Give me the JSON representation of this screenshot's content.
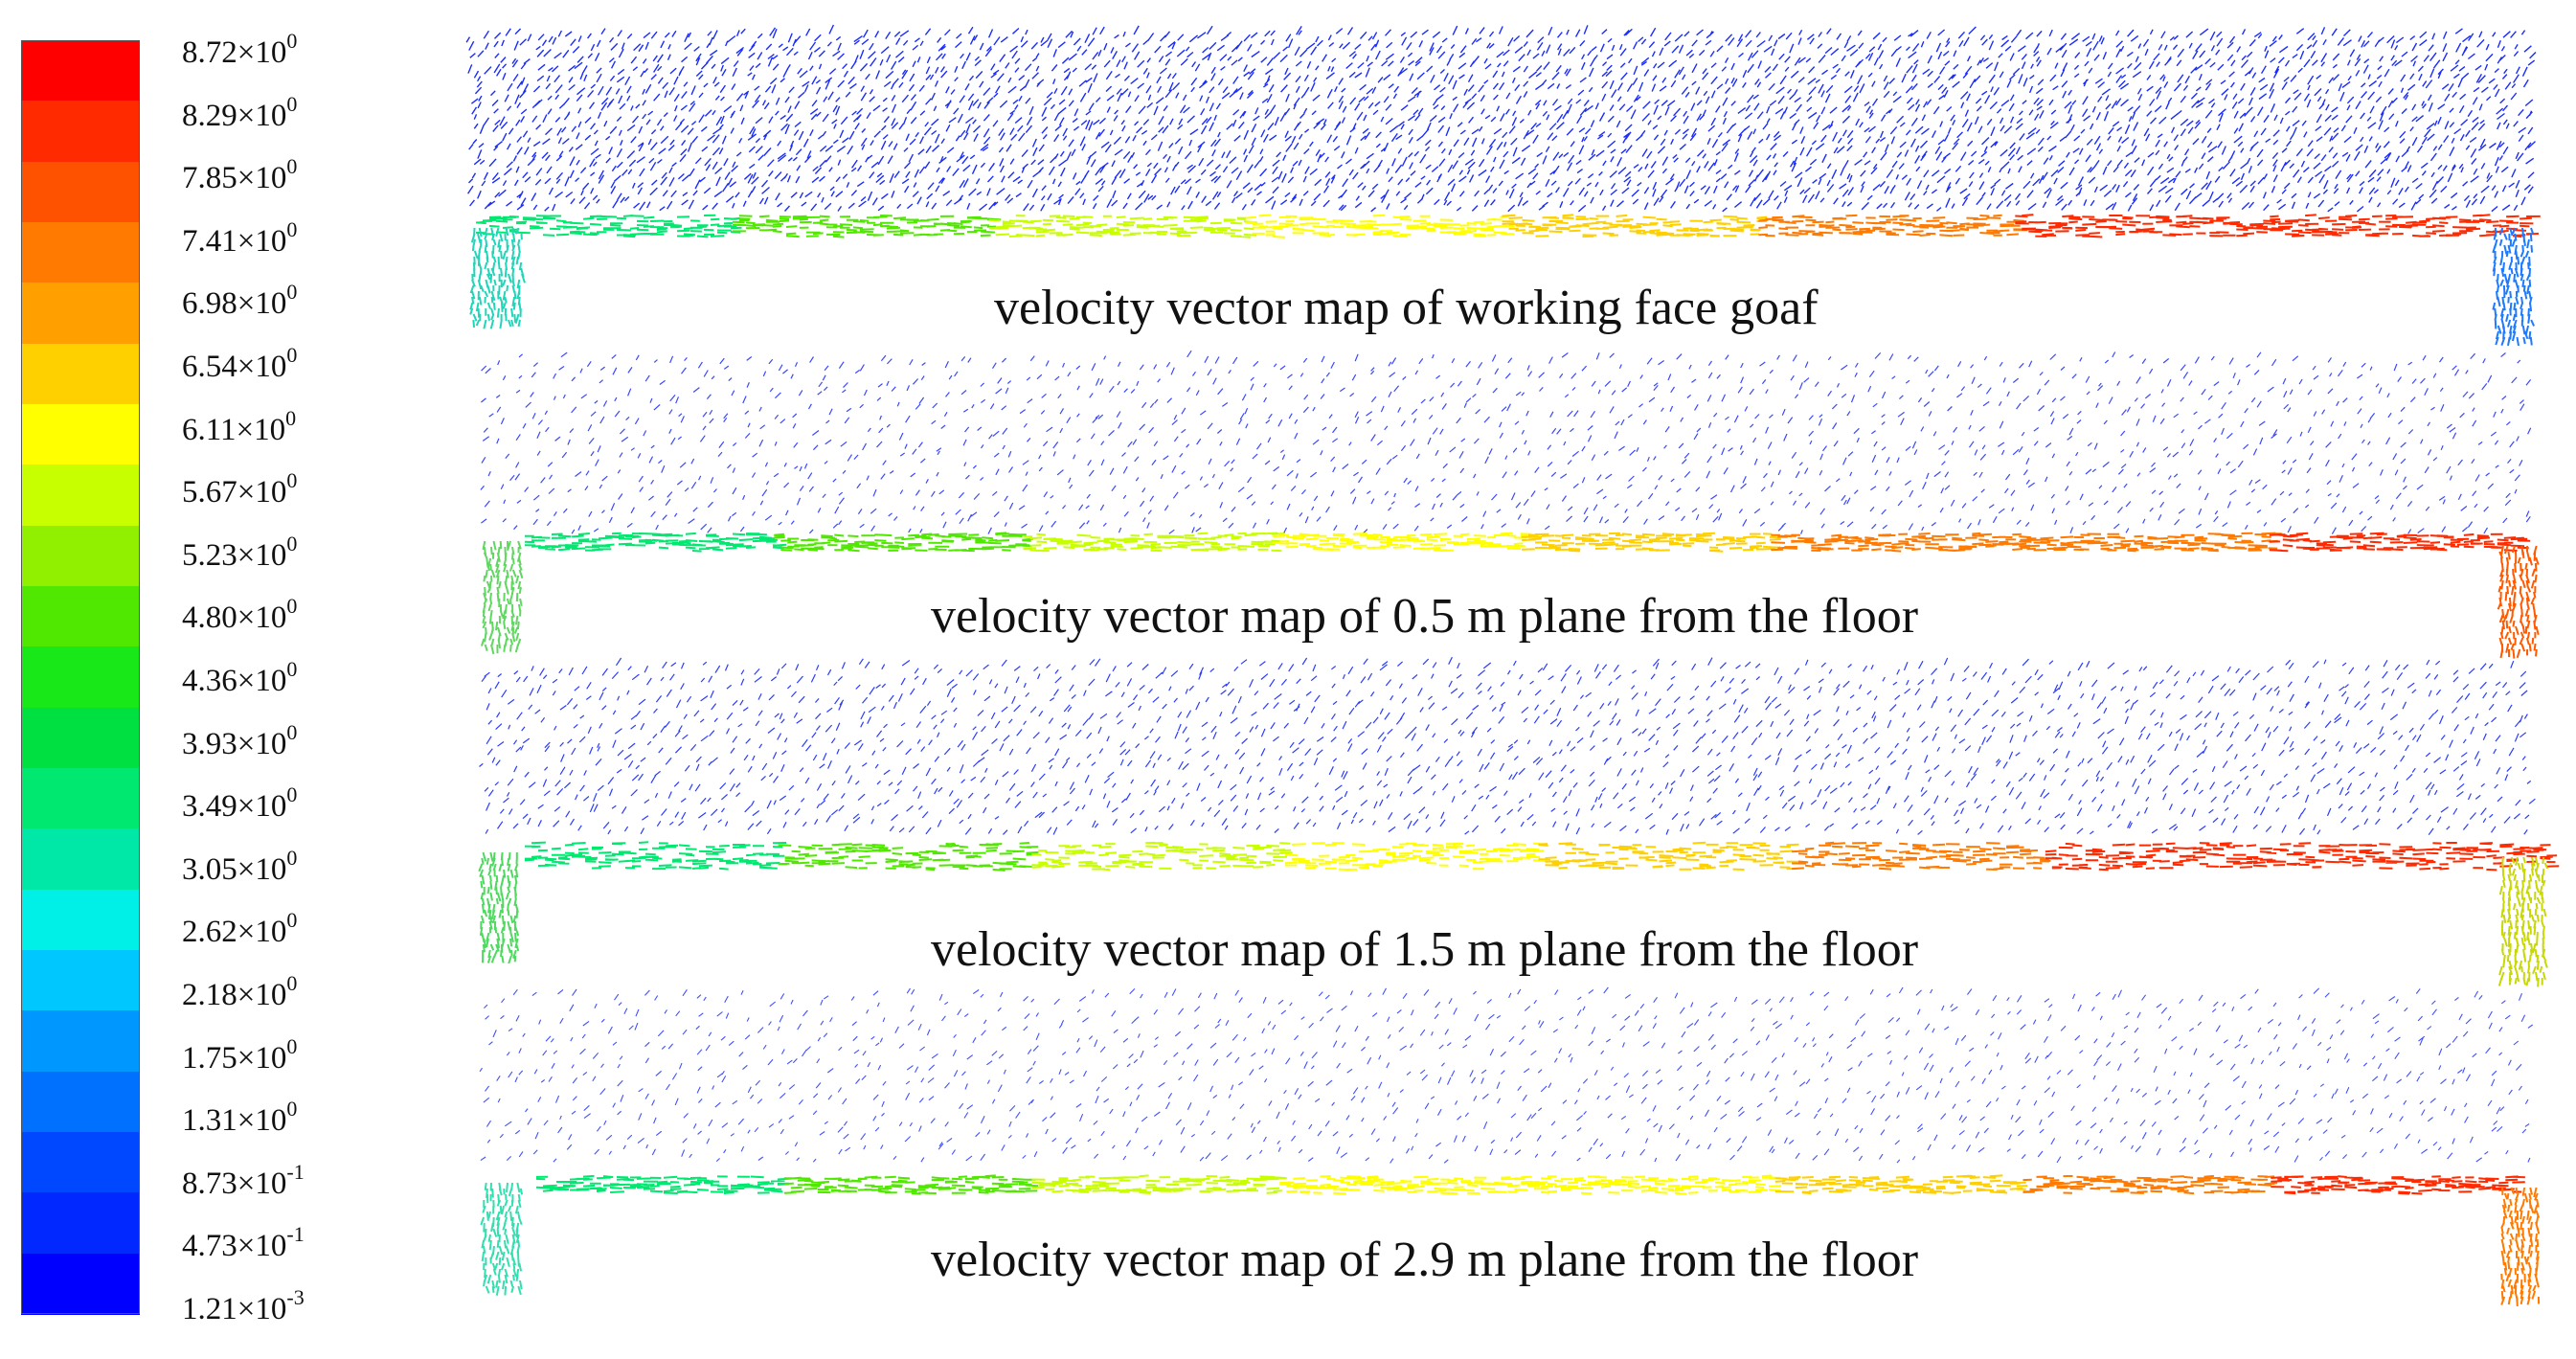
{
  "legend": {
    "colors": [
      "#ff0000",
      "#ff2a00",
      "#ff5200",
      "#ff7a00",
      "#ffa000",
      "#ffd000",
      "#ffff00",
      "#c8ff00",
      "#90f000",
      "#50e800",
      "#18e818",
      "#00e040",
      "#00e870",
      "#00e8a8",
      "#00f0e8",
      "#00c8ff",
      "#0098ff",
      "#0070ff",
      "#0048ff",
      "#0028ff",
      "#0000ff"
    ],
    "ticks": [
      {
        "mant": "8.72×10",
        "exp": "0"
      },
      {
        "mant": "8.29×10",
        "exp": "0"
      },
      {
        "mant": "7.85×10",
        "exp": "0"
      },
      {
        "mant": "7.41×10",
        "exp": "0"
      },
      {
        "mant": "6.98×10",
        "exp": "0"
      },
      {
        "mant": "6.54×10",
        "exp": "0"
      },
      {
        "mant": "6.11×10",
        "exp": "0"
      },
      {
        "mant": "5.67×10",
        "exp": "0"
      },
      {
        "mant": "5.23×10",
        "exp": "0"
      },
      {
        "mant": "4.80×10",
        "exp": "0"
      },
      {
        "mant": "4.36×10",
        "exp": "0"
      },
      {
        "mant": "3.93×10",
        "exp": "0"
      },
      {
        "mant": "3.49×10",
        "exp": "0"
      },
      {
        "mant": "3.05×10",
        "exp": "0"
      },
      {
        "mant": "2.62×10",
        "exp": "0"
      },
      {
        "mant": "2.18×10",
        "exp": "0"
      },
      {
        "mant": "1.75×10",
        "exp": "0"
      },
      {
        "mant": "1.31×10",
        "exp": "0"
      },
      {
        "mant": "8.73×10",
        "exp": "-1"
      },
      {
        "mant": "4.73×10",
        "exp": "-1"
      },
      {
        "mant": "1.21×10",
        "exp": "-3"
      }
    ]
  },
  "panels": [
    {
      "caption": "velocity vector map of working face goaf"
    },
    {
      "caption": "velocity vector map of 0.5 m plane from the floor"
    },
    {
      "caption": "velocity vector map of 1.5 m plane from the floor"
    },
    {
      "caption": "velocity vector map of 2.9 m plane from the floor"
    }
  ]
}
